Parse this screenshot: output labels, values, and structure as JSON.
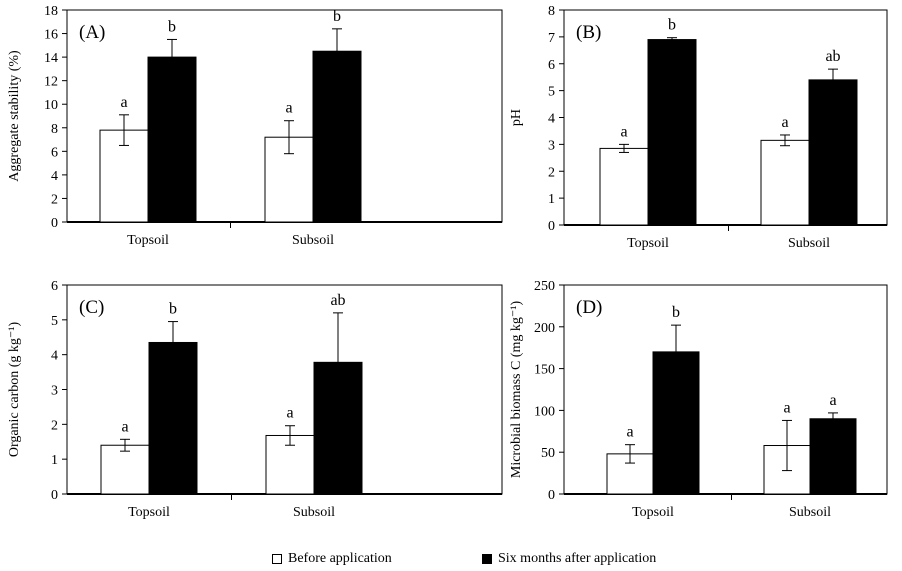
{
  "chart_data": [
    {
      "type": "bar",
      "panel_label": "(A)",
      "ylabel": "Aggregate stability (%)",
      "ylim": [
        0,
        18
      ],
      "yticks": [
        0,
        2,
        4,
        6,
        8,
        10,
        12,
        14,
        16,
        18
      ],
      "categories": [
        "Topsoil",
        "Subsoil"
      ],
      "series": [
        {
          "name": "Before application",
          "values": [
            7.8,
            7.2
          ],
          "errors": [
            1.3,
            1.4
          ],
          "letters": [
            "a",
            "a"
          ]
        },
        {
          "name": "Six months after application",
          "values": [
            14.0,
            14.5
          ],
          "errors": [
            1.5,
            1.9
          ],
          "letters": [
            "b",
            "b"
          ]
        }
      ]
    },
    {
      "type": "bar",
      "panel_label": "(B)",
      "ylabel": "pH",
      "ylim": [
        0,
        8
      ],
      "yticks": [
        0,
        1,
        2,
        3,
        4,
        5,
        6,
        7,
        8
      ],
      "categories": [
        "Topsoil",
        "Subsoil"
      ],
      "series": [
        {
          "name": "Before application",
          "values": [
            2.85,
            3.15
          ],
          "errors": [
            0.15,
            0.2
          ],
          "letters": [
            "a",
            "a"
          ]
        },
        {
          "name": "Six months after application",
          "values": [
            6.9,
            5.4
          ],
          "errors": [
            0.07,
            0.4
          ],
          "letters": [
            "b",
            "ab"
          ]
        }
      ]
    },
    {
      "type": "bar",
      "panel_label": "(C)",
      "ylabel": "Organic carbon (g kg⁻¹)",
      "ylim": [
        0,
        6
      ],
      "yticks": [
        0,
        1,
        2,
        3,
        4,
        5,
        6
      ],
      "categories": [
        "Topsoil",
        "Subsoil"
      ],
      "series": [
        {
          "name": "Before application",
          "values": [
            1.4,
            1.68
          ],
          "errors": [
            0.17,
            0.28
          ],
          "letters": [
            "a",
            "a"
          ]
        },
        {
          "name": "Six months after application",
          "values": [
            4.35,
            3.78
          ],
          "errors": [
            0.6,
            1.42
          ],
          "letters": [
            "b",
            "ab"
          ]
        }
      ]
    },
    {
      "type": "bar",
      "panel_label": "(D)",
      "ylabel": "Microbial biomass C (mg kg⁻¹)",
      "ylim": [
        0,
        250
      ],
      "yticks": [
        0,
        50,
        100,
        150,
        200,
        250
      ],
      "categories": [
        "Topsoil",
        "Subsoil"
      ],
      "series": [
        {
          "name": "Before application",
          "values": [
            48,
            58
          ],
          "errors": [
            11,
            30
          ],
          "letters": [
            "a",
            "a"
          ]
        },
        {
          "name": "Six months after application",
          "values": [
            170,
            90
          ],
          "errors": [
            32,
            7
          ],
          "letters": [
            "b",
            "a"
          ]
        }
      ]
    }
  ],
  "legend": {
    "before": "Before application",
    "after": "Six months after application",
    "before_color": "#ffffff",
    "after_color": "#000000"
  }
}
